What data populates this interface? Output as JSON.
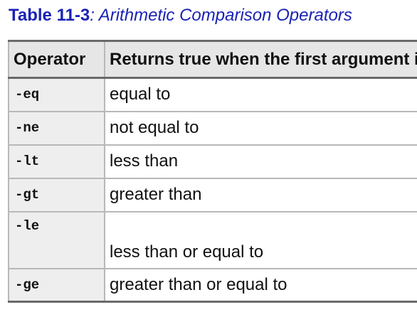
{
  "caption": {
    "label": "Table 11-3",
    "title": ": Arithmetic Comparison Operators"
  },
  "table": {
    "headers": [
      "Operator",
      "Returns true when the first argument is:"
    ],
    "rows": [
      {
        "op": "-eq",
        "desc": "equal to"
      },
      {
        "op": "-ne",
        "desc": "not equal to"
      },
      {
        "op": "-lt",
        "desc": "less than"
      },
      {
        "op": "-gt",
        "desc": "greater than"
      },
      {
        "op": "-le",
        "desc": "less than or equal to"
      },
      {
        "op": "-ge",
        "desc": "greater than or equal to"
      }
    ]
  }
}
